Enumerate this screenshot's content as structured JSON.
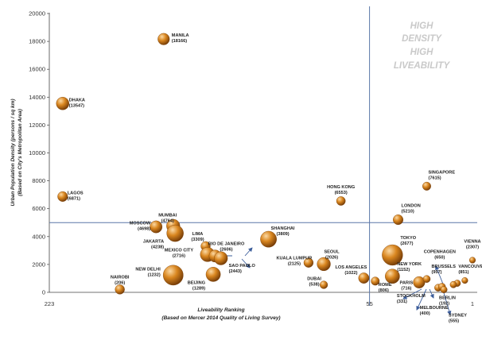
{
  "chart_data": {
    "type": "scatter",
    "title": "",
    "xlabel": "Liveability Ranking",
    "xlabel_sub": "(Based on Mercer 2014 Quality of Living Survey)",
    "ylabel": "Urban Population Density (persons / sq km)",
    "ylabel_sub": "(Based on City's Metropolitan Area)",
    "ylim": [
      0,
      20000
    ],
    "yticks": [
      "0",
      "2000",
      "4000",
      "6000",
      "8000",
      "10000",
      "12000",
      "14000",
      "16000",
      "18000",
      "20000"
    ],
    "xlim": [
      223,
      1
    ],
    "x_reversed": true,
    "xticks": [
      {
        "value": 223,
        "label": "223"
      },
      {
        "value": 55,
        "label": "55"
      },
      {
        "value": 1,
        "label": "1"
      }
    ],
    "quadrant_lines": {
      "x": 55,
      "y": 5000
    },
    "quadrant_label": [
      "HIGH",
      "DENSITY",
      "HIGH",
      "LIVEABILITY"
    ],
    "grid": false,
    "series": [
      {
        "marker_color": "#c8731e",
        "points": [
          {
            "name": "DHAKA",
            "value": "(13547)",
            "x": 216,
            "y": 13547,
            "size": 2.3
          },
          {
            "name": "LAGOS",
            "value": "(6871)",
            "x": 216,
            "y": 6871,
            "size": 1.8
          },
          {
            "name": "NAIROBI",
            "value": "(206)",
            "x": 186,
            "y": 206,
            "size": 1.7
          },
          {
            "name": "MANILA",
            "value": "(18166)",
            "x": 163,
            "y": 18166,
            "size": 2.1
          },
          {
            "name": "MOSCOW",
            "value": "(4698)",
            "x": 167,
            "y": 4698,
            "size": 2.2
          },
          {
            "name": "MUMBAI",
            "value": "(4764)",
            "x": 158,
            "y": 4764,
            "size": 2.4
          },
          {
            "name": "JAKARTA",
            "value": "(4238)",
            "x": 157,
            "y": 4238,
            "size": 3.0
          },
          {
            "name": "NEW DELHI",
            "value": "(1232)",
            "x": 158,
            "y": 1232,
            "size": 3.6
          },
          {
            "name": "LIMA",
            "value": "(3309)",
            "x": 141,
            "y": 3309,
            "size": 1.7
          },
          {
            "name": "MEXICO CITY",
            "value": "(2716)",
            "x": 140,
            "y": 2716,
            "size": 2.6
          },
          {
            "name": "BEIJING",
            "value": "(1289)",
            "x": 137,
            "y": 1289,
            "size": 2.6
          },
          {
            "name": "RIO DE JANEIRO",
            "value": "(2606)",
            "x": 136,
            "y": 2606,
            "size": 2.2
          },
          {
            "name": "SAO PAOLO",
            "value": "(2443)",
            "x": 133,
            "y": 2443,
            "size": 2.4
          },
          {
            "name": "SHANGHAI",
            "value": "(3809)",
            "x": 108,
            "y": 3809,
            "size": 2.9
          },
          {
            "name": "KUALA LUMPUR",
            "value": "(2125)",
            "x": 87,
            "y": 2125,
            "size": 1.7
          },
          {
            "name": "SEOUL",
            "value": "(2026)",
            "x": 79,
            "y": 2026,
            "size": 2.4
          },
          {
            "name": "DUBAI",
            "value": "(538)",
            "x": 79,
            "y": 538,
            "size": 1.4
          },
          {
            "name": "HONG KONG",
            "value": "(6553)",
            "x": 70,
            "y": 6553,
            "size": 1.6
          },
          {
            "name": "LOS ANGELES",
            "value": "(1022)",
            "x": 58,
            "y": 1022,
            "size": 1.9
          },
          {
            "name": "ROME",
            "value": "(806)",
            "x": 52,
            "y": 806,
            "size": 1.5
          },
          {
            "name": "SINGAPORE",
            "value": "(7615)",
            "x": 25,
            "y": 7615,
            "size": 1.5
          },
          {
            "name": "LONDON",
            "value": "(5210)",
            "x": 40,
            "y": 5210,
            "size": 1.8
          },
          {
            "name": "TOKYO",
            "value": "(2677)",
            "x": 43,
            "y": 2677,
            "size": 3.7
          },
          {
            "name": "NEW YORK",
            "value": "(1152)",
            "x": 43,
            "y": 1152,
            "size": 2.6
          },
          {
            "name": "PARIS",
            "value": "(716)",
            "x": 29,
            "y": 716,
            "size": 2.1
          },
          {
            "name": "BRUSSELS",
            "value": "(957)",
            "x": 25,
            "y": 957,
            "size": 1.3
          },
          {
            "name": "STOCKHOLM",
            "value": "(331)",
            "x": 19,
            "y": 331,
            "size": 1.3
          },
          {
            "name": "MELBOURNE",
            "value": "(400)",
            "x": 17,
            "y": 400,
            "size": 1.3
          },
          {
            "name": "BERLIN",
            "value": "(192)",
            "x": 16,
            "y": 192,
            "size": 1.2
          },
          {
            "name": "COPENHAGEN",
            "value": "(650)",
            "x": 9,
            "y": 650,
            "size": 1.2
          },
          {
            "name": "VANCOUVER",
            "value": "(851)",
            "x": 5,
            "y": 851,
            "size": 1.1
          },
          {
            "name": "SYDNEY",
            "value": "(555)",
            "x": 11,
            "y": 555,
            "size": 1.2
          },
          {
            "name": "VIENNA",
            "value": "(2307)",
            "x": 1,
            "y": 2307,
            "size": 1.1
          }
        ]
      }
    ]
  }
}
